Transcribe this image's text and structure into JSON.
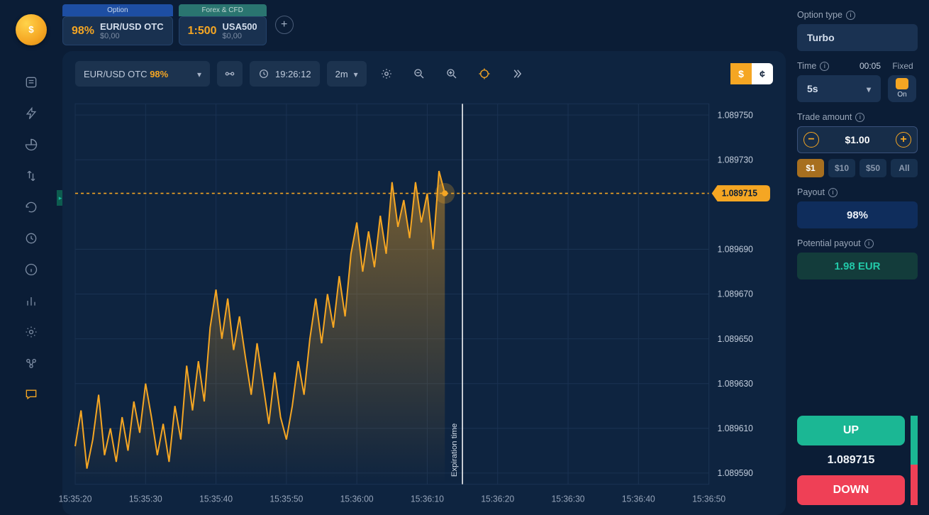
{
  "top_tabs": {
    "option": {
      "label": "Option",
      "pct": "98%",
      "symbol": "EUR/USD OTC",
      "value": "$0,00"
    },
    "forex": {
      "label": "Forex & CFD",
      "leverage": "1:500",
      "symbol": "USA500",
      "value": "$0,00"
    }
  },
  "chart_toolbar": {
    "symbol": "EUR/USD OTC",
    "pct": "98%",
    "clock": "19:26:12",
    "timeframe": "2m",
    "currency_active": "$",
    "currency_inactive": "¢"
  },
  "chart": {
    "type": "area",
    "line_color": "#f5a623",
    "area_top_color": "#f5a62355",
    "area_bottom_color": "#f5a62300",
    "grid_color": "#1a3252",
    "background_color": "#0e2440",
    "x_labels": [
      "15:35:20",
      "15:35:30",
      "15:35:40",
      "15:35:50",
      "15:36:00",
      "15:36:10",
      "15:36:20",
      "15:36:30",
      "15:36:40",
      "15:36:50"
    ],
    "y_labels": [
      "1.089750",
      "1.089730",
      "1.089715",
      "1.089690",
      "1.089670",
      "1.089650",
      "1.089630",
      "1.089610",
      "1.089590"
    ],
    "y_min": 1.089585,
    "y_max": 1.089755,
    "x_count": 10,
    "current_price": "1.089715",
    "current_x_index": 5.25,
    "expiration_x_index": 5.5,
    "expiration_label": "Expiration time",
    "series": [
      1.089602,
      1.089618,
      1.089592,
      1.089605,
      1.089625,
      1.089598,
      1.08961,
      1.089595,
      1.089615,
      1.0896,
      1.089622,
      1.089608,
      1.08963,
      1.089615,
      1.089598,
      1.089612,
      1.089595,
      1.08962,
      1.089605,
      1.089638,
      1.089618,
      1.08964,
      1.089622,
      1.089655,
      1.089672,
      1.08965,
      1.089668,
      1.089645,
      1.08966,
      1.089642,
      1.089625,
      1.089648,
      1.08963,
      1.089612,
      1.089635,
      1.089615,
      1.089605,
      1.08962,
      1.08964,
      1.089625,
      1.08965,
      1.089668,
      1.089648,
      1.08967,
      1.089655,
      1.089678,
      1.08966,
      1.089688,
      1.089702,
      1.08968,
      1.089698,
      1.089682,
      1.089705,
      1.089688,
      1.08972,
      1.0897,
      1.089712,
      1.089695,
      1.08972,
      1.089702,
      1.089715,
      1.08969,
      1.089725,
      1.089715
    ]
  },
  "right_panel": {
    "option_type_label": "Option type",
    "option_type_value": "Turbo",
    "time_label": "Time",
    "time_countdown": "00:05",
    "fixed_label": "Fixed",
    "time_value": "5s",
    "toggle_state": "On",
    "amount_label": "Trade amount",
    "amount_value": "$1.00",
    "presets": [
      "$1",
      "$10",
      "$50",
      "All"
    ],
    "preset_active_index": 0,
    "payout_label": "Payout",
    "payout_value": "98%",
    "potential_label": "Potential payout",
    "potential_value": "1.98 EUR",
    "up_label": "UP",
    "down_label": "DOWN",
    "current_price": "1.089715",
    "ratio_up_pct": 55,
    "up_color": "#1bb794",
    "down_color": "#ef4056"
  }
}
